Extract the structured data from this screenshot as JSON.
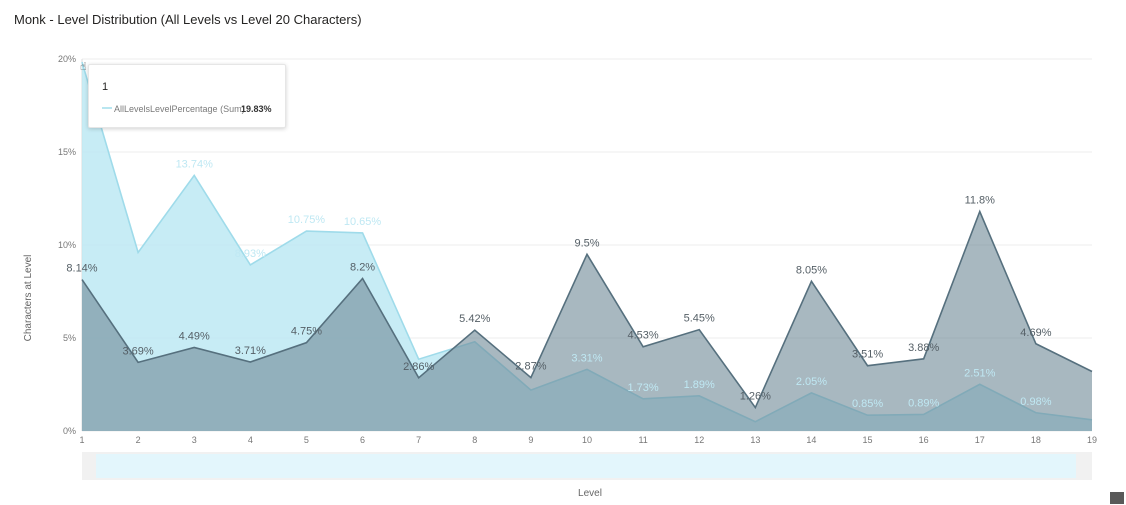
{
  "title": "Monk - Level Distribution (All Levels vs Level 20 Characters)",
  "chart_data": {
    "type": "area",
    "xlabel": "Level",
    "ylabel": "Characters at Level",
    "x": [
      1,
      2,
      3,
      4,
      5,
      6,
      7,
      8,
      9,
      10,
      11,
      12,
      13,
      14,
      15,
      16,
      17,
      18,
      19
    ],
    "ylim": [
      0,
      20
    ],
    "yticks": [
      0,
      5,
      10,
      15,
      20
    ],
    "ytick_labels": [
      "0%",
      "5%",
      "10%",
      "15%",
      "20%"
    ],
    "grid": true,
    "series": [
      {
        "name": "AllLevelsLevelPercentage",
        "color": "#bde9f3",
        "line_color": "#9fdbea",
        "values": [
          19.83,
          9.6,
          13.74,
          8.93,
          10.75,
          10.65,
          3.86,
          4.8,
          2.2,
          3.31,
          1.73,
          1.89,
          0.5,
          2.05,
          0.85,
          0.89,
          2.51,
          0.98,
          0.6
        ],
        "labels": [
          "",
          "",
          "13.74%",
          "8.93%",
          "10.75%",
          "10.65%",
          "",
          "",
          "",
          "3.31%",
          "1.73%",
          "1.89%",
          "",
          "2.05%",
          "0.85%",
          "0.89%",
          "2.51%",
          "0.98%",
          ""
        ]
      },
      {
        "color": "#6e8896",
        "line_color": "#56707e",
        "values": [
          8.14,
          3.69,
          4.49,
          3.71,
          4.75,
          8.2,
          2.86,
          5.42,
          2.87,
          9.5,
          4.53,
          5.45,
          1.26,
          8.05,
          3.51,
          3.88,
          11.8,
          4.69,
          3.2
        ],
        "labels": [
          "8.14%",
          "3.69%",
          "4.49%",
          "3.71%",
          "4.75%",
          "8.2%",
          "2.86%",
          "5.42%",
          "2.87%",
          "9.5%",
          "4.53%",
          "5.45%",
          "1.26%",
          "8.05%",
          "3.51%",
          "3.88%",
          "11.8%",
          "4.69%",
          ""
        ]
      }
    ]
  },
  "tooltip": {
    "header": "1",
    "series": "AllLevelsLevelPercentage (Sum)",
    "value": "19.83%"
  }
}
